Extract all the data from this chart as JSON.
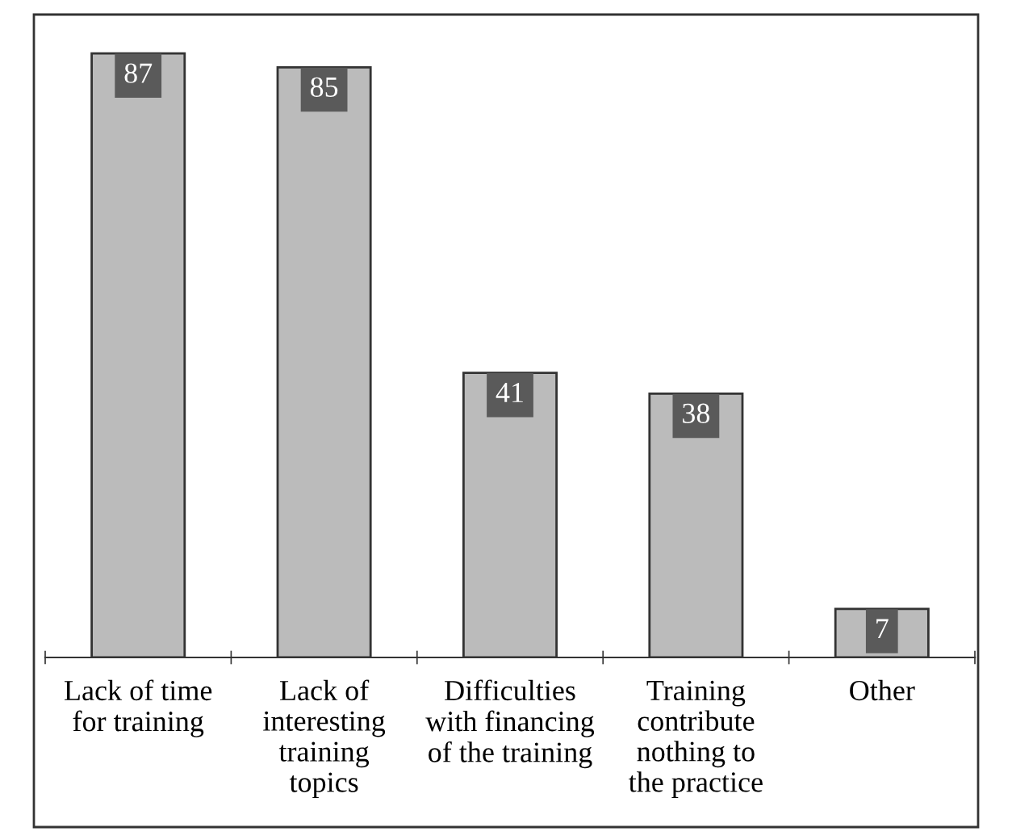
{
  "chart_data": {
    "type": "bar",
    "categories": [
      "Lack of time\nfor training",
      "Lack of\ninteresting\ntraining\ntopics",
      "Difficulties\nwith financing\nof the training",
      "Training\ncontribute\nnothing to\nthe practice",
      "Other"
    ],
    "values": [
      87,
      85,
      41,
      38,
      7
    ],
    "color": "#bbbbbb",
    "data_labels": true,
    "grid": false,
    "legend": false
  }
}
